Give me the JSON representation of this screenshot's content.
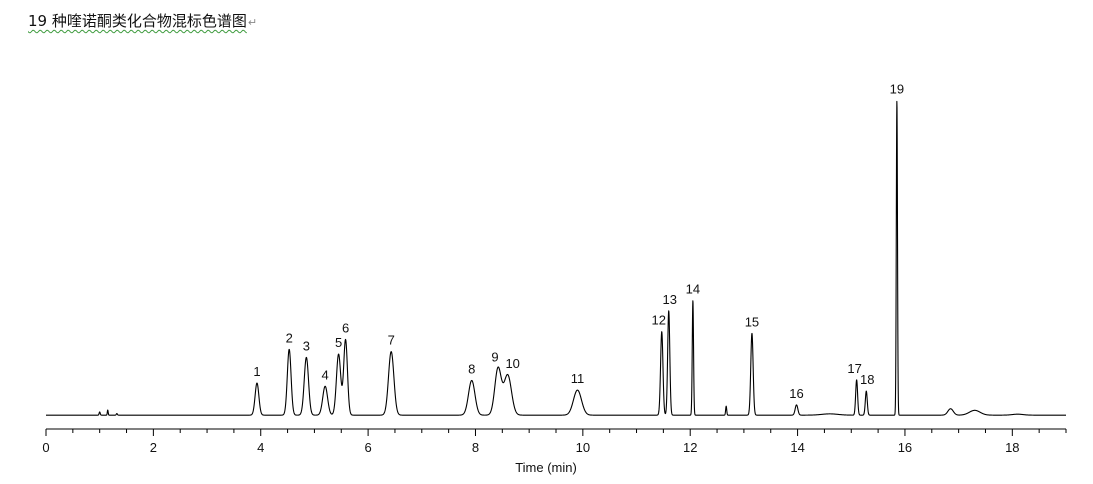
{
  "document": {
    "title": "19 种喹诺酮类化合物混标色谱图",
    "paragraph_mark": "↵"
  },
  "chart_data": {
    "type": "line",
    "title": "19 种喹诺酮类化合物混标色谱图",
    "xlabel": "Time (min)",
    "ylabel": "",
    "xlim": [
      0,
      19
    ],
    "ylim": [
      0,
      100
    ],
    "x_ticks": [
      0,
      2,
      4,
      6,
      8,
      10,
      12,
      14,
      16,
      18
    ],
    "x_minor_step": 0.5,
    "grid": false,
    "line_color": "#000000",
    "baseline": 1.2,
    "peaks": [
      {
        "label": "1",
        "t": 3.93,
        "h": 10.0,
        "w": 0.035
      },
      {
        "label": "2",
        "t": 4.53,
        "h": 20.5,
        "w": 0.035
      },
      {
        "label": "3",
        "t": 4.85,
        "h": 18.0,
        "w": 0.04
      },
      {
        "label": "4",
        "t": 5.2,
        "h": 9.0,
        "w": 0.045
      },
      {
        "label": "5",
        "t": 5.45,
        "h": 19.0,
        "w": 0.04
      },
      {
        "label": "6",
        "t": 5.58,
        "h": 23.5,
        "w": 0.035
      },
      {
        "label": "7",
        "t": 6.43,
        "h": 19.8,
        "w": 0.05
      },
      {
        "label": "8",
        "t": 7.93,
        "h": 10.8,
        "w": 0.06
      },
      {
        "label": "9",
        "t": 8.42,
        "h": 14.5,
        "w": 0.06
      },
      {
        "label": "10",
        "t": 8.6,
        "h": 12.5,
        "w": 0.07
      },
      {
        "label": "11",
        "t": 9.9,
        "h": 7.8,
        "w": 0.075
      },
      {
        "label": "12",
        "t": 11.47,
        "h": 26.0,
        "w": 0.022
      },
      {
        "label": "13",
        "t": 11.6,
        "h": 32.5,
        "w": 0.02
      },
      {
        "label": "14",
        "t": 12.05,
        "h": 35.7,
        "w": 0.012
      },
      {
        "label": "15",
        "t": 13.15,
        "h": 25.5,
        "w": 0.022
      },
      {
        "label": "16",
        "t": 13.98,
        "h": 3.2,
        "w": 0.025
      },
      {
        "label": "17",
        "t": 15.1,
        "h": 11.0,
        "w": 0.018
      },
      {
        "label": "18",
        "t": 15.28,
        "h": 7.5,
        "w": 0.018
      },
      {
        "label": "19",
        "t": 15.85,
        "h": 98.0,
        "w": 0.011
      }
    ],
    "minor_features": [
      {
        "t": 1.0,
        "h": 1.0,
        "w": 0.01
      },
      {
        "t": 1.15,
        "h": 1.6,
        "w": 0.008
      },
      {
        "t": 1.32,
        "h": 0.5,
        "w": 0.01
      },
      {
        "t": 12.67,
        "h": 2.8,
        "w": 0.01
      },
      {
        "t": 14.6,
        "h": 0.4,
        "w": 0.15
      },
      {
        "t": 16.85,
        "h": 2.0,
        "w": 0.05
      },
      {
        "t": 17.3,
        "h": 1.5,
        "w": 0.1
      },
      {
        "t": 18.1,
        "h": 0.3,
        "w": 0.1
      }
    ]
  }
}
